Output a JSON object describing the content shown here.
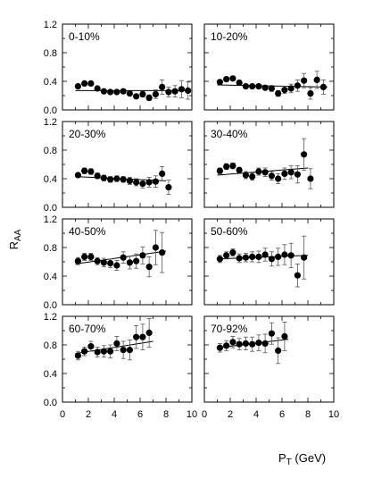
{
  "chart_data": {
    "type": "scatter",
    "xlabel_main": "P",
    "xlabel_sub": "T",
    "xlabel_unit": " (GeV)",
    "ylabel_main": "R",
    "ylabel_sub": "AA",
    "xlim": [
      0,
      10
    ],
    "ylim": [
      0,
      1.2
    ],
    "x_ticks": [
      "0",
      "2",
      "4",
      "6",
      "8",
      "10"
    ],
    "y_ticks": [
      "0.0",
      "0.4",
      "0.8",
      "1.2"
    ],
    "panels": [
      {
        "label": "0-10%",
        "x": [
          1.2,
          1.7,
          2.2,
          2.7,
          3.2,
          3.7,
          4.2,
          4.7,
          5.2,
          5.7,
          6.2,
          6.7,
          7.2,
          7.7,
          8.2,
          8.7,
          9.2,
          9.7
        ],
        "y": [
          0.33,
          0.37,
          0.37,
          0.3,
          0.26,
          0.25,
          0.25,
          0.26,
          0.23,
          0.19,
          0.22,
          0.17,
          0.22,
          0.32,
          0.25,
          0.26,
          0.29,
          0.27
        ],
        "err": [
          0.03,
          0.03,
          0.03,
          0.02,
          0.02,
          0.02,
          0.02,
          0.03,
          0.03,
          0.03,
          0.04,
          0.04,
          0.06,
          0.1,
          0.07,
          0.08,
          0.12,
          0.12
        ],
        "fit": [
          [
            1.0,
            0.27
          ],
          [
            9.8,
            0.27
          ]
        ]
      },
      {
        "label": "10-20%",
        "x": [
          1.2,
          1.7,
          2.2,
          2.7,
          3.2,
          3.7,
          4.2,
          4.7,
          5.2,
          5.7,
          6.2,
          6.7,
          7.2,
          7.7,
          8.2,
          8.7,
          9.2
        ],
        "y": [
          0.39,
          0.43,
          0.44,
          0.38,
          0.33,
          0.33,
          0.33,
          0.31,
          0.3,
          0.23,
          0.28,
          0.3,
          0.34,
          0.41,
          0.23,
          0.42,
          0.32
        ],
        "err": [
          0.03,
          0.03,
          0.03,
          0.03,
          0.03,
          0.03,
          0.03,
          0.03,
          0.04,
          0.04,
          0.05,
          0.06,
          0.08,
          0.1,
          0.08,
          0.12,
          0.1
        ],
        "fit": [
          [
            1.0,
            0.35
          ],
          [
            9.5,
            0.32
          ]
        ]
      },
      {
        "label": "20-30%",
        "x": [
          1.2,
          1.7,
          2.2,
          2.7,
          3.2,
          3.7,
          4.2,
          4.7,
          5.2,
          5.7,
          6.2,
          6.7,
          7.2,
          7.7,
          8.2
        ],
        "y": [
          0.45,
          0.51,
          0.5,
          0.44,
          0.41,
          0.39,
          0.4,
          0.39,
          0.37,
          0.35,
          0.33,
          0.35,
          0.36,
          0.47,
          0.28
        ],
        "err": [
          0.03,
          0.04,
          0.04,
          0.04,
          0.04,
          0.04,
          0.04,
          0.04,
          0.05,
          0.05,
          0.06,
          0.07,
          0.08,
          0.1,
          0.1
        ],
        "fit": [
          [
            1.0,
            0.43
          ],
          [
            8.0,
            0.37
          ]
        ]
      },
      {
        "label": "30-40%",
        "x": [
          1.2,
          1.7,
          2.2,
          2.7,
          3.2,
          3.7,
          4.2,
          4.7,
          5.2,
          5.7,
          6.2,
          6.7,
          7.2,
          7.7,
          8.2
        ],
        "y": [
          0.51,
          0.57,
          0.58,
          0.52,
          0.45,
          0.43,
          0.5,
          0.49,
          0.44,
          0.4,
          0.47,
          0.49,
          0.46,
          0.74,
          0.4
        ],
        "err": [
          0.04,
          0.04,
          0.04,
          0.04,
          0.05,
          0.05,
          0.05,
          0.06,
          0.06,
          0.07,
          0.08,
          0.09,
          0.12,
          0.22,
          0.14
        ],
        "fit": [
          [
            1.0,
            0.45
          ],
          [
            8.0,
            0.55
          ]
        ]
      },
      {
        "label": "40-50%",
        "x": [
          1.2,
          1.7,
          2.2,
          2.7,
          3.2,
          3.7,
          4.2,
          4.7,
          5.2,
          5.7,
          6.2,
          6.7,
          7.2,
          7.7
        ],
        "y": [
          0.61,
          0.67,
          0.67,
          0.61,
          0.59,
          0.58,
          0.55,
          0.66,
          0.59,
          0.61,
          0.69,
          0.53,
          0.8,
          0.73
        ],
        "err": [
          0.05,
          0.05,
          0.05,
          0.05,
          0.06,
          0.06,
          0.07,
          0.08,
          0.09,
          0.1,
          0.12,
          0.14,
          0.24,
          0.28
        ],
        "fit": [
          [
            1.0,
            0.57
          ],
          [
            8.0,
            0.75
          ]
        ]
      },
      {
        "label": "50-60%",
        "x": [
          1.2,
          1.7,
          2.2,
          2.7,
          3.2,
          3.7,
          4.2,
          4.7,
          5.2,
          5.7,
          6.2,
          6.7,
          7.2,
          7.7
        ],
        "y": [
          0.64,
          0.69,
          0.73,
          0.65,
          0.66,
          0.67,
          0.67,
          0.7,
          0.64,
          0.67,
          0.7,
          0.69,
          0.41,
          0.66
        ],
        "err": [
          0.05,
          0.05,
          0.05,
          0.06,
          0.06,
          0.07,
          0.08,
          0.09,
          0.1,
          0.12,
          0.14,
          0.17,
          0.16,
          0.3
        ],
        "fit": [
          [
            1.0,
            0.64
          ],
          [
            8.0,
            0.69
          ]
        ]
      },
      {
        "label": "60-70%",
        "x": [
          1.2,
          1.7,
          2.2,
          2.7,
          3.2,
          3.7,
          4.2,
          4.7,
          5.2,
          5.7,
          6.2,
          6.7
        ],
        "y": [
          0.65,
          0.71,
          0.78,
          0.7,
          0.71,
          0.71,
          0.82,
          0.73,
          0.73,
          0.91,
          0.91,
          0.97
        ],
        "err": [
          0.06,
          0.06,
          0.07,
          0.07,
          0.08,
          0.09,
          0.1,
          0.12,
          0.14,
          0.16,
          0.18,
          0.2
        ],
        "fit": [
          [
            1.0,
            0.68
          ],
          [
            7.0,
            0.85
          ]
        ]
      },
      {
        "label": "70-92%",
        "x": [
          1.2,
          1.7,
          2.2,
          2.7,
          3.2,
          3.7,
          4.2,
          4.7,
          5.2,
          5.7,
          6.2
        ],
        "y": [
          0.76,
          0.79,
          0.84,
          0.81,
          0.82,
          0.81,
          0.83,
          0.82,
          0.96,
          0.72,
          0.92
        ],
        "err": [
          0.06,
          0.07,
          0.08,
          0.08,
          0.09,
          0.1,
          0.11,
          0.13,
          0.15,
          0.18,
          0.2
        ],
        "fit": [
          [
            1.0,
            0.76
          ],
          [
            6.5,
            0.88
          ]
        ]
      }
    ]
  }
}
